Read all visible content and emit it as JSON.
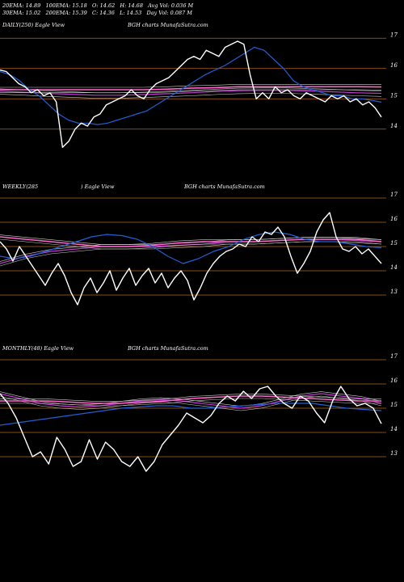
{
  "header": {
    "row1": [
      {
        "k": "20EMA:",
        "v": "14.89"
      },
      {
        "k": "100EMA:",
        "v": "15.18"
      },
      {
        "k": "O:",
        "v": "14.62"
      },
      {
        "k": "H:",
        "v": "14.68"
      },
      {
        "k": "Avg Vol:",
        "v": "0.036  M"
      }
    ],
    "row2": [
      {
        "k": "30EMA:",
        "v": "15.02"
      },
      {
        "k": "200EMA:",
        "v": "15.39"
      },
      {
        "k": "C:",
        "v": "14.36"
      },
      {
        "k": "L:",
        "v": "14.53"
      },
      {
        "k": "Day Vol:",
        "v": "0.087 M"
      }
    ]
  },
  "panels": [
    {
      "label_left": "DAILY(250) Eagle  View",
      "label_mid": "",
      "label_center": "BGH charts MunafaSutra.com"
    },
    {
      "label_left": "WEEKLY(285",
      "label_mid": ") Eagle  View",
      "label_center": "BGH charts MunafaSutra.com"
    },
    {
      "label_left": "MONTHLY(48) Eagle  View",
      "label_mid": "",
      "label_center": "BGH charts MunafaSutra.com"
    }
  ],
  "colors": {
    "background": "#000000",
    "gridline": "#b5651d",
    "price": "#ffffff",
    "ema20": "#1f5fd6",
    "ema100": "#c03ad0",
    "ema200": "#ff66cc",
    "ema_other": "#cfcfcf"
  },
  "chart_data": [
    {
      "type": "line",
      "timeframe": "daily",
      "yticks": [
        14,
        15,
        16,
        17
      ],
      "ylim": [
        13.3,
        17.3
      ],
      "series": [
        {
          "values": [
            15.95,
            15.9,
            15.7,
            15.5,
            15.4,
            15.2,
            15.3,
            15.1,
            15.2,
            14.9,
            13.4,
            13.6,
            14.0,
            14.2,
            14.1,
            14.4,
            14.5,
            14.8,
            14.9,
            15.0,
            15.1,
            15.3,
            15.1,
            15.0,
            15.3,
            15.5,
            15.6,
            15.7,
            15.9,
            16.1,
            16.3,
            16.4,
            16.3,
            16.6,
            16.5,
            16.4,
            16.7,
            16.8,
            16.9,
            16.8,
            15.8,
            15.0,
            15.2,
            15.0,
            15.4,
            15.2,
            15.3,
            15.1,
            15.0,
            15.2,
            15.1,
            15.0,
            14.9,
            15.1,
            15.0,
            15.1,
            14.9,
            15.0,
            14.8,
            14.9,
            14.7,
            14.4
          ]
        },
        {
          "values": [
            15.9,
            15.8,
            15.6,
            15.3,
            15.1,
            14.8,
            14.5,
            14.3,
            14.2,
            14.2,
            14.15,
            14.2,
            14.3,
            14.4,
            14.5,
            14.6,
            14.8,
            15.0,
            15.2,
            15.4,
            15.6,
            15.8,
            15.95,
            16.1,
            16.3,
            16.5,
            16.7,
            16.6,
            16.3,
            16.0,
            15.6,
            15.4,
            15.3,
            15.2,
            15.1,
            15.1,
            15.0,
            15.0,
            14.95,
            14.89
          ]
        },
        {
          "values": [
            15.3,
            15.3,
            15.3,
            15.3,
            15.3,
            15.3,
            15.3,
            15.32,
            15.35,
            15.37,
            15.4,
            15.4,
            15.4,
            15.4,
            15.4,
            15.4,
            15.39
          ]
        },
        {
          "values": [
            15.25,
            15.22,
            15.18,
            15.15,
            15.12,
            15.12,
            15.14,
            15.17,
            15.2,
            15.24,
            15.27,
            15.28,
            15.28,
            15.26,
            15.23,
            15.2,
            15.18
          ]
        }
      ]
    },
    {
      "type": "line",
      "timeframe": "weekly",
      "yticks": [
        13,
        14,
        15,
        16,
        17
      ],
      "ylim": [
        12.3,
        17.3
      ],
      "series": [
        {
          "values": [
            15.2,
            14.9,
            14.4,
            15.0,
            14.6,
            14.2,
            13.8,
            13.4,
            13.9,
            14.3,
            13.8,
            13.1,
            12.6,
            13.3,
            13.7,
            13.1,
            13.5,
            14.0,
            13.2,
            13.7,
            14.1,
            13.4,
            13.8,
            14.1,
            13.5,
            13.9,
            13.3,
            13.7,
            14.0,
            13.6,
            12.8,
            13.3,
            13.9,
            14.3,
            14.6,
            14.8,
            14.9,
            15.1,
            15.0,
            15.4,
            15.2,
            15.6,
            15.5,
            15.8,
            15.4,
            14.6,
            13.9,
            14.3,
            14.8,
            15.6,
            16.1,
            16.4,
            15.4,
            14.9,
            14.8,
            15.0,
            14.7,
            14.9,
            14.6,
            14.3
          ]
        },
        {
          "values": [
            14.6,
            14.5,
            14.6,
            14.8,
            15.0,
            15.2,
            15.4,
            15.5,
            15.45,
            15.3,
            15.0,
            14.6,
            14.3,
            14.5,
            14.8,
            15.0,
            15.3,
            15.5,
            15.6,
            15.5,
            15.3,
            15.2,
            15.2,
            15.1,
            15.0,
            14.95
          ]
        },
        {
          "values": [
            15.4,
            15.3,
            15.2,
            15.1,
            15.0,
            15.0,
            15.05,
            15.15,
            15.2,
            15.2,
            15.2,
            15.25,
            15.3,
            15.3,
            15.3,
            15.2
          ]
        },
        {
          "values": [
            14.3,
            14.6,
            14.8,
            14.9,
            15.0,
            15.0,
            15.0,
            15.05,
            15.1,
            15.2,
            15.2,
            15.25,
            15.3,
            15.3,
            15.25,
            15.2
          ]
        }
      ]
    },
    {
      "type": "line",
      "timeframe": "monthly",
      "yticks": [
        13,
        14,
        15,
        16,
        17
      ],
      "ylim": [
        12.3,
        17.3
      ],
      "series": [
        {
          "values": [
            15.6,
            15.2,
            14.6,
            13.8,
            13.0,
            13.2,
            12.7,
            13.8,
            13.3,
            12.6,
            12.8,
            13.7,
            12.9,
            13.6,
            13.3,
            12.8,
            12.6,
            13.0,
            12.4,
            12.8,
            13.5,
            13.9,
            14.3,
            14.8,
            14.6,
            14.4,
            14.7,
            15.2,
            15.5,
            15.3,
            15.7,
            15.4,
            15.8,
            15.9,
            15.5,
            15.2,
            15.0,
            15.5,
            15.3,
            14.8,
            14.4,
            15.3,
            15.9,
            15.4,
            15.1,
            15.2,
            15.0,
            14.36
          ]
        },
        {
          "values": [
            14.3,
            14.4,
            14.5,
            14.6,
            14.7,
            14.8,
            14.9,
            15.0,
            15.05,
            15.1,
            15.1,
            15.0,
            15.0,
            15.05,
            15.1,
            15.15,
            15.2,
            15.2,
            15.2,
            15.1,
            15.0,
            14.95,
            14.9
          ]
        },
        {
          "values": [
            15.3,
            15.3,
            15.3,
            15.25,
            15.2,
            15.2,
            15.25,
            15.3,
            15.4,
            15.45,
            15.5,
            15.5,
            15.45,
            15.4,
            15.35,
            15.3,
            15.3
          ]
        },
        {
          "values": [
            15.6,
            15.4,
            15.2,
            15.1,
            15.05,
            15.1,
            15.2,
            15.3,
            15.35,
            15.3,
            15.2,
            15.1,
            15.0,
            15.1,
            15.3,
            15.5,
            15.6,
            15.5,
            15.4,
            15.2
          ]
        }
      ]
    }
  ]
}
